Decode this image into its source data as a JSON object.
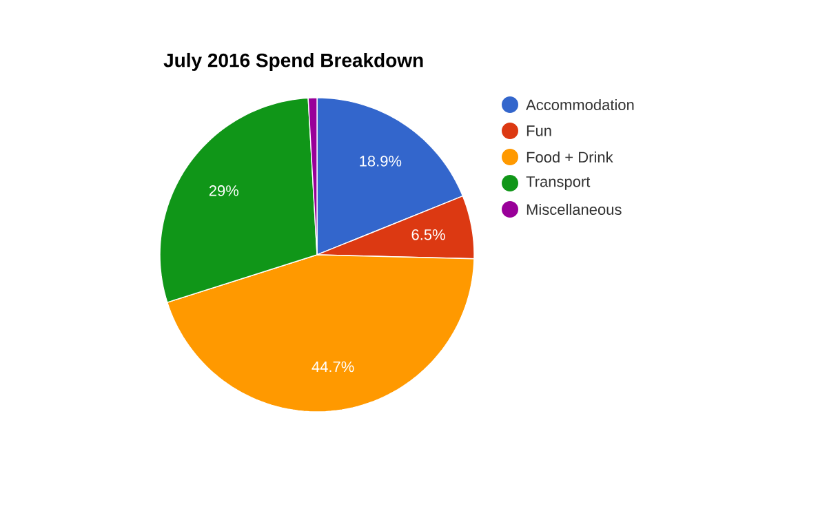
{
  "chart_data": {
    "type": "pie",
    "title": "July 2016 Spend Breakdown",
    "categories": [
      "Accommodation",
      "Fun",
      "Food + Drink",
      "Transport",
      "Miscellaneous"
    ],
    "values": [
      18.9,
      6.5,
      44.7,
      29,
      0.9
    ],
    "colors": [
      "#3366cc",
      "#dc3912",
      "#ff9900",
      "#109618",
      "#990099"
    ],
    "value_labels": [
      "18.9%",
      "6.5%",
      "44.7%",
      "29%",
      null
    ],
    "legend": "right"
  }
}
